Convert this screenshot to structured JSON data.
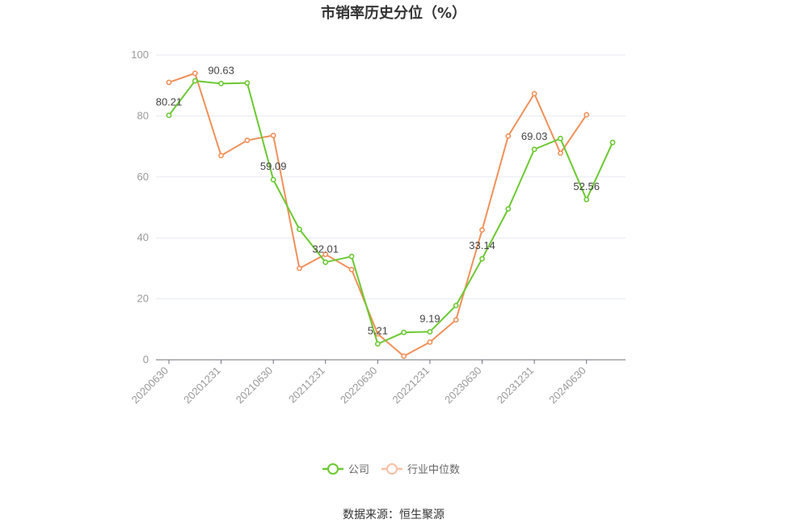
{
  "chart_data": {
    "type": "line",
    "title": "市销率历史分位（%）",
    "x": [
      "20200630",
      "20200930",
      "20201231",
      "20210331",
      "20210630",
      "20210930",
      "20211231",
      "20220331",
      "20220630",
      "20220930",
      "20221231",
      "20230331",
      "20230630",
      "20230930",
      "20231231",
      "20240331",
      "20240630",
      "20240930"
    ],
    "x_tick_labels": [
      "20200630",
      "20201231",
      "20210630",
      "20211231",
      "20220630",
      "20221231",
      "20230630",
      "20231231",
      "20240630"
    ],
    "ylim": [
      0,
      100
    ],
    "y_ticks": [
      0,
      20,
      40,
      60,
      80,
      100
    ],
    "grid": true,
    "legend_position": "bottom",
    "series": [
      {
        "name": "公司",
        "color": "#6cc832",
        "values": [
          80.21,
          91.5,
          90.63,
          90.8,
          59.09,
          42.8,
          32.01,
          33.9,
          5.21,
          9.0,
          9.19,
          17.8,
          33.14,
          49.5,
          69.03,
          72.6,
          52.56,
          71.3
        ],
        "labels": [
          {
            "index": 0,
            "text": "80.21"
          },
          {
            "index": 2,
            "text": "90.63"
          },
          {
            "index": 4,
            "text": "59.09"
          },
          {
            "index": 6,
            "text": "32.01"
          },
          {
            "index": 8,
            "text": "5.21"
          },
          {
            "index": 10,
            "text": "9.19"
          },
          {
            "index": 12,
            "text": "33.14"
          },
          {
            "index": 14,
            "text": "69.03"
          },
          {
            "index": 16,
            "text": "52.56"
          }
        ]
      },
      {
        "name": "行业中位数",
        "color": "#f0905a",
        "values": [
          91.0,
          94.0,
          67.0,
          72.0,
          73.6,
          30.0,
          34.6,
          29.6,
          8.5,
          1.2,
          5.8,
          13.1,
          42.6,
          73.4,
          87.3,
          67.8,
          80.4,
          null
        ]
      }
    ]
  },
  "source_text": "数据来源：恒生聚源"
}
